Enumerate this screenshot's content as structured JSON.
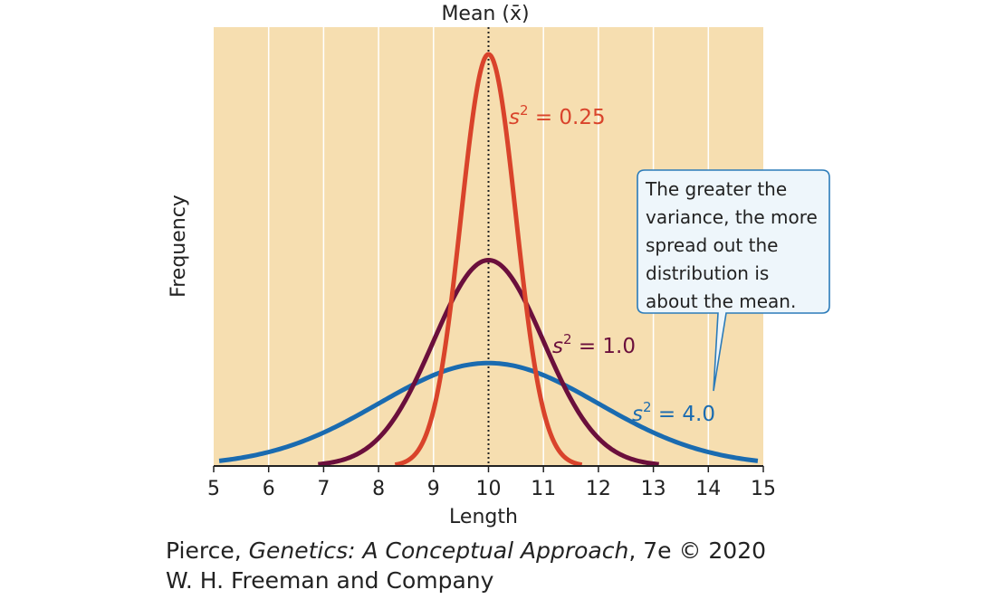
{
  "chart_data": {
    "type": "line",
    "xlabel": "Length",
    "ylabel": "Frequency",
    "xlim": [
      5,
      15
    ],
    "xticks": [
      "5",
      "6",
      "7",
      "8",
      "9",
      "10",
      "11",
      "12",
      "13",
      "14",
      "15"
    ],
    "mean_label": "Mean (x̄)",
    "mean": 10,
    "series": [
      {
        "name": "s² = 0.25",
        "mean": 10,
        "variance": 0.25,
        "x_range": [
          8.3,
          11.7
        ],
        "color": "#d9432b"
      },
      {
        "name": "s² = 1.0",
        "mean": 10,
        "variance": 1.0,
        "x_range": [
          6.9,
          13.1
        ],
        "color": "#6b0f3c"
      },
      {
        "name": "s² = 4.0",
        "mean": 10,
        "variance": 4.0,
        "x_range": [
          5.1,
          14.9
        ],
        "color": "#1a6bb0"
      }
    ],
    "annotation": "The greater the variance, the more spread out the distribution is about the mean.",
    "colors": {
      "background": "#f6deb0",
      "gridlines": "#ffffff",
      "callout_fill": "#eef6fb",
      "callout_border": "#2b7bb9"
    }
  },
  "credit": {
    "line1_author": "Pierce, ",
    "line1_title": "Genetics: A Conceptual Approach",
    "line1_tail": ", 7e © 2020",
    "line2": "W. H. Freeman and Company"
  }
}
